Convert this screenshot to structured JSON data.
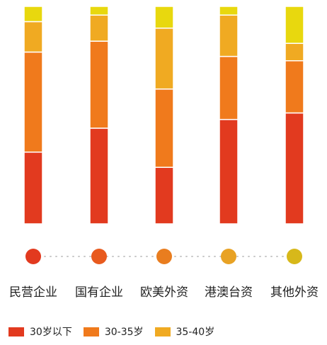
{
  "chart_data": {
    "type": "bar",
    "stacked": true,
    "normalized": true,
    "categories": [
      "民营企业",
      "国有企业",
      "欧美外资",
      "港澳台资",
      "其他外资"
    ],
    "series": [
      {
        "name": "30岁以下",
        "color": "#e23a1f",
        "values": [
          33,
          44,
          26,
          48,
          51
        ]
      },
      {
        "name": "30-35岁",
        "color": "#f07a1c",
        "values": [
          46,
          40,
          36,
          29,
          24
        ]
      },
      {
        "name": "35-40岁",
        "color": "#f0aa22",
        "values": [
          14,
          12,
          28,
          19,
          8
        ]
      },
      {
        "name": "",
        "color": "#e8d80e",
        "values": [
          7,
          4,
          10,
          4,
          17
        ]
      }
    ],
    "dot_colors": [
      "#e23a1f",
      "#e85a1e",
      "#e97d1f",
      "#e8a224",
      "#d7b81a"
    ],
    "ylim": [
      0,
      100
    ]
  },
  "legend": [
    {
      "label": "30岁以下",
      "color": "#e23a1f"
    },
    {
      "label": "30-35岁",
      "color": "#f07a1c"
    },
    {
      "label": "35-40岁",
      "color": "#f0aa22"
    }
  ]
}
